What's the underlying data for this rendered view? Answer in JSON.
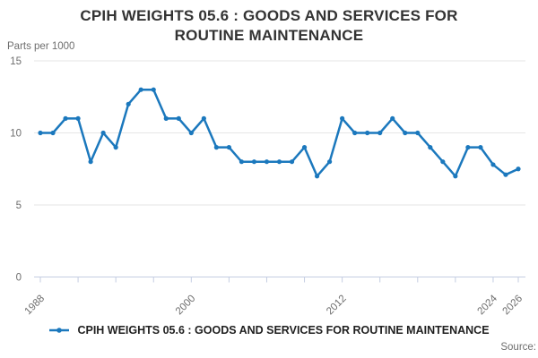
{
  "title": "CPIH WEIGHTS 05.6 : GOODS AND SERVICES FOR ROUTINE MAINTENANCE",
  "y_axis_unit": "Parts per 1000",
  "source_label": "Source:",
  "legend": {
    "label": "CPIH WEIGHTS 05.6 : GOODS AND SERVICES FOR ROUTINE MAINTENANCE",
    "marker": "line-with-dot"
  },
  "colors": {
    "line": "#1b78bd",
    "grid": "#e6e6e6",
    "axis": "#c4cde2",
    "tick_label": "#6e6e6e",
    "title_text": "#333333",
    "legend_text": "#1f1f1f",
    "source_text": "#6e6e6e"
  },
  "chart_data": {
    "type": "line",
    "title": "CPIH WEIGHTS 05.6 : GOODS AND SERVICES FOR ROUTINE MAINTENANCE",
    "xlabel": "",
    "ylabel": "Parts per 1000",
    "ylim": [
      0,
      15
    ],
    "y_ticks": [
      0,
      5,
      10,
      15
    ],
    "x_ticks": [
      1988,
      1991,
      1994,
      1997,
      2000,
      2003,
      2006,
      2009,
      2012,
      2015,
      2018,
      2021,
      2024,
      2026
    ],
    "x_labeled_ticks": [
      1988,
      2000,
      2012,
      2024,
      2026
    ],
    "grid": "horizontal",
    "legend_position": "bottom",
    "x": [
      1988,
      1989,
      1990,
      1991,
      1992,
      1993,
      1994,
      1995,
      1996,
      1997,
      1998,
      1999,
      2000,
      2001,
      2002,
      2003,
      2004,
      2005,
      2006,
      2007,
      2008,
      2009,
      2010,
      2011,
      2012,
      2013,
      2014,
      2015,
      2016,
      2017,
      2018,
      2019,
      2020,
      2021,
      2022,
      2023,
      2024,
      2025,
      2026
    ],
    "values": [
      10,
      10,
      11,
      11,
      8,
      10,
      9,
      12,
      13,
      13,
      11,
      11,
      10,
      11,
      9,
      9,
      8,
      8,
      8,
      8,
      8,
      9,
      7,
      8,
      11,
      10,
      10,
      10,
      11,
      10,
      10,
      9,
      8,
      7,
      9,
      9,
      7.8,
      7.1,
      7.5
    ]
  }
}
